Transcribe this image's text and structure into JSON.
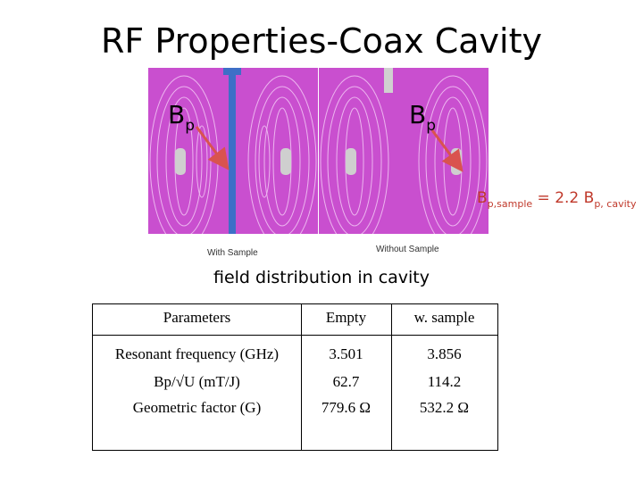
{
  "title": "RF Properties-Coax Cavity",
  "figure": {
    "left_label": {
      "base": "B",
      "sub": "p"
    },
    "right_label": {
      "base": "B",
      "sub": "p"
    },
    "with_sample_caption": "With Sample",
    "without_sample_caption": "Without Sample",
    "equation": {
      "b1": "B",
      "s1": "p,sample",
      "mid": " = 2.2 B",
      "s2": "p, cavity"
    },
    "field_caption": "field distribution in cavity"
  },
  "table": {
    "headers": [
      "Parameters",
      "Empty",
      "w. sample"
    ],
    "rows": [
      [
        "Resonant frequency (GHz)",
        "3.501",
        "3.856"
      ],
      [
        "Bp/√U (mT/J)",
        "62.7",
        "114.2"
      ],
      [
        "Geometric factor (G)",
        "779.6 Ω",
        "532.2 Ω"
      ]
    ]
  },
  "colors": {
    "cavity": "#c94fcf",
    "arrow": "#d9534f",
    "equation": "#c0392b",
    "rod": "#3e6fc7"
  }
}
